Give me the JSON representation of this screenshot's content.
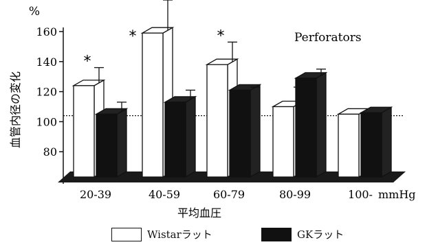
{
  "chart_data": {
    "type": "bar",
    "title": "Perforators",
    "ylabel": "血管内径の変化",
    "yunit": "%",
    "xlabel": "平均血圧",
    "xunit": "mmHg",
    "categories": [
      "20-39",
      "40-59",
      "60-79",
      "80-99",
      "100-"
    ],
    "series": [
      {
        "name": "Wistarラット",
        "values": [
          124,
          159,
          138,
          110,
          105
        ],
        "error": [
          12,
          22,
          15,
          13,
          0
        ],
        "color": "#ffffff"
      },
      {
        "name": "GKラット",
        "values": [
          105,
          113,
          121,
          129,
          106
        ],
        "error": [
          8,
          8,
          2,
          6,
          0
        ],
        "color": "#111111"
      }
    ],
    "significance": [
      "*",
      "*",
      "*",
      "",
      ""
    ],
    "baseline": 104,
    "yticks": [
      80,
      100,
      120,
      140,
      160
    ],
    "ylim": [
      60,
      165
    ],
    "grid": false,
    "legend_position": "bottom"
  }
}
